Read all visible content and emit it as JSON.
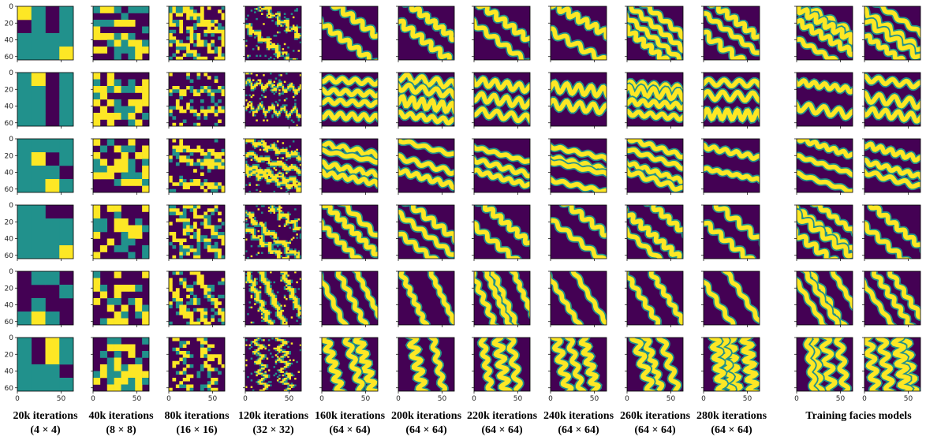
{
  "columns": [
    {
      "title": "20k iterations",
      "subtitle": "(4 × 4)"
    },
    {
      "title": "40k iterations",
      "subtitle": "(8 × 8)"
    },
    {
      "title": "80k iterations",
      "subtitle": "(16 × 16)"
    },
    {
      "title": "120k iterations",
      "subtitle": "(32 × 32)"
    },
    {
      "title": "160k iterations",
      "subtitle": "(64 × 64)"
    },
    {
      "title": "200k iterations",
      "subtitle": "(64 × 64)"
    },
    {
      "title": "220k iterations",
      "subtitle": "(64 × 64)"
    },
    {
      "title": "240k iterations",
      "subtitle": "(64 × 64)"
    },
    {
      "title": "260k iterations",
      "subtitle": "(64 × 64)"
    },
    {
      "title": "280k iterations",
      "subtitle": "(64 × 64)"
    }
  ],
  "training_label": "Training facies models",
  "y_ticks": [
    0,
    20,
    40,
    60
  ],
  "x_ticks": [
    0,
    50
  ]
}
